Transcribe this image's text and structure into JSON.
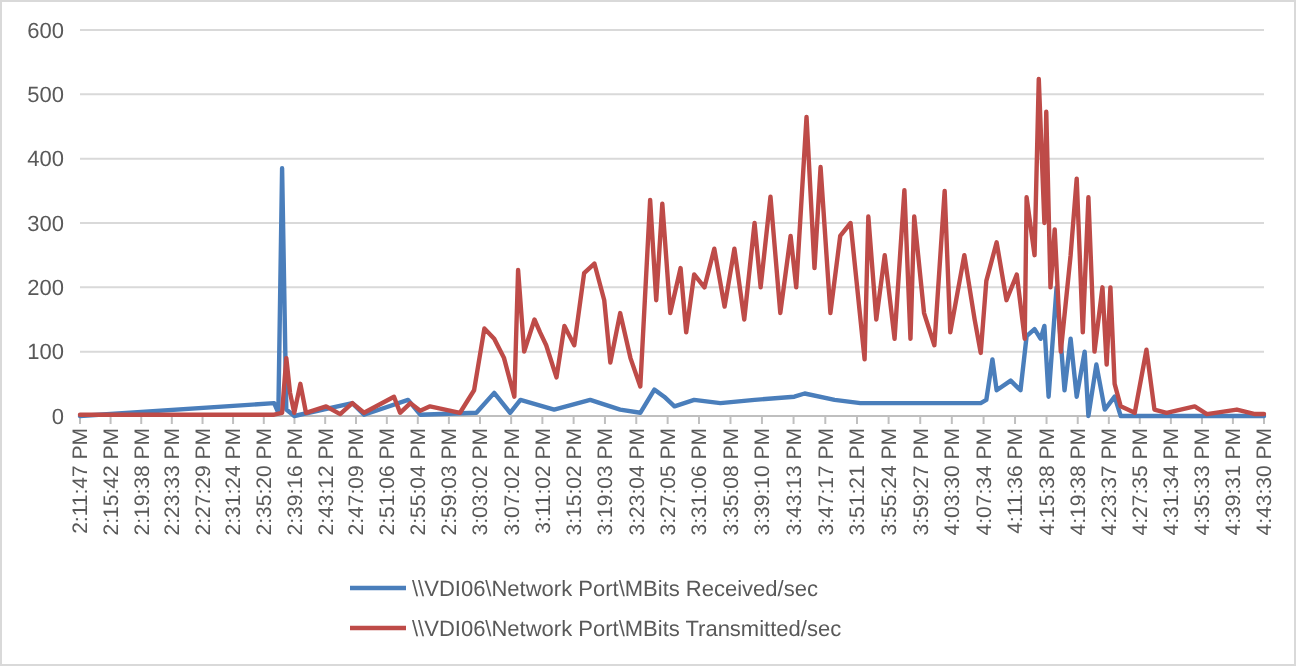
{
  "chart_data": {
    "type": "line",
    "xlim": [
      14.1964,
      16.725
    ],
    "ylim": [
      0,
      600
    ],
    "yticks": [
      0,
      100,
      200,
      300,
      400,
      500,
      600
    ],
    "grid": "y",
    "legend": "bottom",
    "xticks": [
      {
        "value": 14.1964,
        "label": "2:11:47 PM"
      },
      {
        "value": 14.2617,
        "label": "2:15:42 PM"
      },
      {
        "value": 14.3272,
        "label": "2:19:38 PM"
      },
      {
        "value": 14.3925,
        "label": "2:23:33 PM"
      },
      {
        "value": 14.4581,
        "label": "2:27:29 PM"
      },
      {
        "value": 14.5233,
        "label": "2:31:24 PM"
      },
      {
        "value": 14.5889,
        "label": "2:35:20 PM"
      },
      {
        "value": 14.6544,
        "label": "2:39:16 PM"
      },
      {
        "value": 14.72,
        "label": "2:43:12 PM"
      },
      {
        "value": 14.7858,
        "label": "2:47:09 PM"
      },
      {
        "value": 14.8517,
        "label": "2:51:06 PM"
      },
      {
        "value": 14.9178,
        "label": "2:55:04 PM"
      },
      {
        "value": 14.9842,
        "label": "2:59:03 PM"
      },
      {
        "value": 15.0506,
        "label": "3:03:02 PM"
      },
      {
        "value": 15.1172,
        "label": "3:07:02 PM"
      },
      {
        "value": 15.1839,
        "label": "3:11:02 PM"
      },
      {
        "value": 15.2506,
        "label": "3:15:02 PM"
      },
      {
        "value": 15.3175,
        "label": "3:19:03 PM"
      },
      {
        "value": 15.3844,
        "label": "3:23:04 PM"
      },
      {
        "value": 15.4514,
        "label": "3:27:05 PM"
      },
      {
        "value": 15.5183,
        "label": "3:31:06 PM"
      },
      {
        "value": 15.5856,
        "label": "3:35:08 PM"
      },
      {
        "value": 15.6528,
        "label": "3:39:10 PM"
      },
      {
        "value": 15.7203,
        "label": "3:43:13 PM"
      },
      {
        "value": 15.7881,
        "label": "3:47:17 PM"
      },
      {
        "value": 15.8558,
        "label": "3:51:21 PM"
      },
      {
        "value": 15.9233,
        "label": "3:55:24 PM"
      },
      {
        "value": 15.9908,
        "label": "3:59:27 PM"
      },
      {
        "value": 16.0583,
        "label": "4:03:30 PM"
      },
      {
        "value": 16.1261,
        "label": "4:07:34 PM"
      },
      {
        "value": 16.1933,
        "label": "4:11:36 PM"
      },
      {
        "value": 16.2606,
        "label": "4:15:38 PM"
      },
      {
        "value": 16.3272,
        "label": "4:19:38 PM"
      },
      {
        "value": 16.3936,
        "label": "4:23:37 PM"
      },
      {
        "value": 16.4597,
        "label": "4:27:35 PM"
      },
      {
        "value": 16.5261,
        "label": "4:31:34 PM"
      },
      {
        "value": 16.5925,
        "label": "4:35:33 PM"
      },
      {
        "value": 16.6586,
        "label": "4:39:31 PM"
      },
      {
        "value": 16.725,
        "label": "4:43:30 PM"
      }
    ],
    "series": [
      {
        "name": "\\\\VDI06\\Network Port\\MBits Received/sec",
        "color": "#4a7ebb",
        "x": [
          14.1964,
          14.611,
          14.62,
          14.628,
          14.637,
          14.654,
          14.778,
          14.803,
          14.897,
          14.923,
          15.043,
          15.081,
          15.115,
          15.137,
          15.209,
          15.286,
          15.35,
          15.393,
          15.423,
          15.444,
          15.466,
          15.508,
          15.564,
          15.637,
          15.722,
          15.744,
          15.808,
          15.863,
          16.12,
          16.132,
          16.145,
          16.154,
          16.184,
          16.205,
          16.218,
          16.235,
          16.248,
          16.256,
          16.265,
          16.282,
          16.299,
          16.312,
          16.325,
          16.342,
          16.35,
          16.367,
          16.385,
          16.406,
          16.419,
          16.725
        ],
        "values": [
          0,
          20,
          5,
          385,
          10,
          0,
          20,
          2,
          25,
          2,
          5,
          36,
          5,
          25,
          10,
          25,
          10,
          5,
          41,
          30,
          15,
          25,
          20,
          25,
          30,
          35,
          25,
          20,
          20,
          25,
          88,
          40,
          55,
          40,
          124,
          135,
          120,
          140,
          30,
          200,
          40,
          120,
          30,
          100,
          0,
          80,
          10,
          30,
          0,
          0
        ]
      },
      {
        "name": "\\\\VDI06\\Network Port\\MBits Transmitted/sec",
        "color": "#be4b48",
        "x": [
          14.1964,
          14.611,
          14.628,
          14.637,
          14.645,
          14.654,
          14.667,
          14.679,
          14.722,
          14.752,
          14.778,
          14.803,
          14.867,
          14.88,
          14.902,
          14.923,
          14.944,
          15.008,
          15.038,
          15.06,
          15.081,
          15.102,
          15.124,
          15.132,
          15.145,
          15.167,
          15.179,
          15.192,
          15.214,
          15.231,
          15.252,
          15.273,
          15.295,
          15.316,
          15.329,
          15.35,
          15.372,
          15.393,
          15.414,
          15.427,
          15.44,
          15.457,
          15.479,
          15.491,
          15.508,
          15.53,
          15.551,
          15.573,
          15.594,
          15.615,
          15.637,
          15.65,
          15.671,
          15.692,
          15.714,
          15.726,
          15.748,
          15.765,
          15.778,
          15.799,
          15.82,
          15.842,
          15.872,
          15.88,
          15.897,
          15.915,
          15.936,
          15.957,
          15.97,
          15.978,
          15.999,
          16.021,
          16.043,
          16.055,
          16.085,
          16.107,
          16.12,
          16.132,
          16.154,
          16.175,
          16.197,
          16.214,
          16.218,
          16.235,
          16.244,
          16.256,
          16.26,
          16.269,
          16.278,
          16.291,
          16.312,
          16.325,
          16.338,
          16.35,
          16.363,
          16.38,
          16.389,
          16.397,
          16.406,
          16.419,
          16.449,
          16.474,
          16.491,
          16.517,
          16.577,
          16.603,
          16.667,
          16.706,
          16.725
        ],
        "values": [
          2,
          2,
          5,
          90,
          36,
          5,
          50,
          5,
          15,
          3,
          20,
          5,
          30,
          5,
          20,
          8,
          15,
          5,
          40,
          136,
          120,
          90,
          30,
          227,
          100,
          150,
          130,
          110,
          60,
          140,
          110,
          222,
          237,
          180,
          83,
          160,
          90,
          46,
          336,
          180,
          330,
          160,
          230,
          130,
          220,
          200,
          260,
          170,
          260,
          150,
          300,
          200,
          341,
          160,
          280,
          200,
          465,
          230,
          387,
          160,
          280,
          300,
          88,
          310,
          150,
          250,
          120,
          351,
          120,
          310,
          160,
          110,
          350,
          130,
          250,
          150,
          98,
          210,
          270,
          180,
          220,
          120,
          340,
          250,
          524,
          300,
          473,
          200,
          290,
          100,
          250,
          369,
          130,
          340,
          100,
          200,
          80,
          200,
          50,
          15,
          5,
          103,
          10,
          5,
          15,
          3,
          10,
          3,
          3
        ]
      }
    ]
  }
}
